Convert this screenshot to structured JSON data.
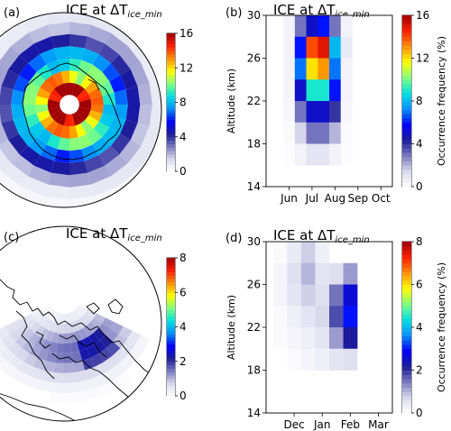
{
  "panels": {
    "a": {
      "label": "(a)",
      "title_main": "ICE at ΔT",
      "title_sub": "ice_min"
    },
    "b": {
      "label": "(b)",
      "title_main": "ICE at ΔT",
      "title_sub": "ice_min"
    },
    "c": {
      "label": "(c)",
      "title_main": "ICE at ΔT",
      "title_sub": "ice_min"
    },
    "d": {
      "label": "(d)",
      "title_main": "ICE at ΔT",
      "title_sub": "ice_min"
    }
  },
  "colorbars": {
    "top": {
      "ticks": [
        "0",
        "4",
        "8",
        "12",
        "16"
      ],
      "label": "",
      "range": [
        0,
        16
      ]
    },
    "bottom": {
      "ticks": [
        "0",
        "2",
        "4",
        "6",
        "8"
      ],
      "label": "",
      "range": [
        0,
        8
      ]
    }
  },
  "colors": {
    "colormap": [
      "#ffffff",
      "#d8d8ec",
      "#7a7ac0",
      "#1c1c99",
      "#0000ff",
      "#0090ff",
      "#00e0e0",
      "#80ff80",
      "#ffff00",
      "#ff9000",
      "#ff2000",
      "#a00000"
    ]
  },
  "chart_data": [
    {
      "type": "heatmap",
      "panel": "a",
      "projection": "south polar stereographic",
      "title": "ICE at ΔTice_min",
      "colorbar_range": [
        0,
        16
      ],
      "rings": [
        {
          "from_center": 0.0,
          "value": 0
        },
        {
          "from_center": 0.08,
          "value": 16
        },
        {
          "from_center": 0.18,
          "value": 12
        },
        {
          "from_center": 0.28,
          "value": 9
        },
        {
          "from_center": 0.38,
          "value": 7
        },
        {
          "from_center": 0.48,
          "value": 4
        },
        {
          "from_center": 0.58,
          "value": 2
        },
        {
          "from_center": 0.68,
          "value": 0.8
        },
        {
          "from_center": 0.78,
          "value": 0.3
        }
      ]
    },
    {
      "type": "heatmap",
      "panel": "b",
      "title": "ICE at ΔTice_min",
      "xlabel": "",
      "ylabel": "Altitude (km)",
      "colorbar_label": "Occurrence frequency (%)",
      "xticks": [
        "Jun",
        "Jul",
        "Aug",
        "Sep",
        "Oct"
      ],
      "yticks": [
        "14",
        "18",
        "22",
        "26",
        "30"
      ],
      "ylim": [
        14,
        30
      ],
      "xlim": [
        0,
        5.5
      ],
      "colorbar_range": [
        0,
        16
      ],
      "x_centers": [
        1.0,
        1.5,
        2.0,
        2.5,
        3.0,
        3.5
      ],
      "y_centers": [
        29,
        27,
        25,
        23,
        21,
        19,
        17
      ],
      "values": [
        [
          0.5,
          3,
          5,
          6,
          3,
          0.5
        ],
        [
          0.5,
          6,
          14,
          15,
          8,
          0.8
        ],
        [
          0.5,
          7,
          12,
          13,
          7,
          0.5
        ],
        [
          0.4,
          5,
          9,
          9,
          6,
          0.4
        ],
        [
          0.3,
          3,
          5,
          5,
          4,
          0.3
        ],
        [
          0.2,
          1.5,
          3,
          3,
          2,
          0.2
        ],
        [
          0.1,
          0.5,
          1,
          1,
          0.5,
          0.1
        ]
      ]
    },
    {
      "type": "heatmap",
      "panel": "c",
      "projection": "north polar stereographic",
      "title": "ICE at ΔTice_min",
      "colorbar_range": [
        0,
        8
      ]
    },
    {
      "type": "heatmap",
      "panel": "d",
      "title": "ICE at ΔTice_min",
      "xlabel": "",
      "ylabel": "Altitude (km)",
      "colorbar_label": "Occurrence frequency (%)",
      "xticks": [
        "Dec",
        "Jan",
        "Feb",
        "Mar"
      ],
      "yticks": [
        "14",
        "18",
        "22",
        "26",
        "30"
      ],
      "ylim": [
        14,
        30
      ],
      "xlim": [
        0,
        4.5
      ],
      "colorbar_range": [
        0,
        8
      ],
      "x_centers": [
        0.5,
        1.0,
        1.5,
        2.0,
        2.5,
        3.0
      ],
      "y_centers": [
        29,
        27,
        25,
        23,
        21,
        19,
        17
      ],
      "values": [
        [
          0.1,
          0.4,
          0.8,
          0.3,
          0,
          0
        ],
        [
          0.2,
          0.6,
          1.0,
          0.5,
          0.6,
          1.2
        ],
        [
          0.2,
          0.5,
          0.8,
          0.6,
          1.5,
          2.6
        ],
        [
          0.1,
          0.3,
          0.5,
          0.7,
          1.8,
          3.0
        ],
        [
          0.1,
          0.2,
          0.3,
          0.5,
          1.2,
          2.2
        ],
        [
          0,
          0.1,
          0.2,
          0.3,
          0.5,
          0.6
        ],
        [
          0,
          0,
          0,
          0,
          0,
          0
        ]
      ]
    }
  ]
}
